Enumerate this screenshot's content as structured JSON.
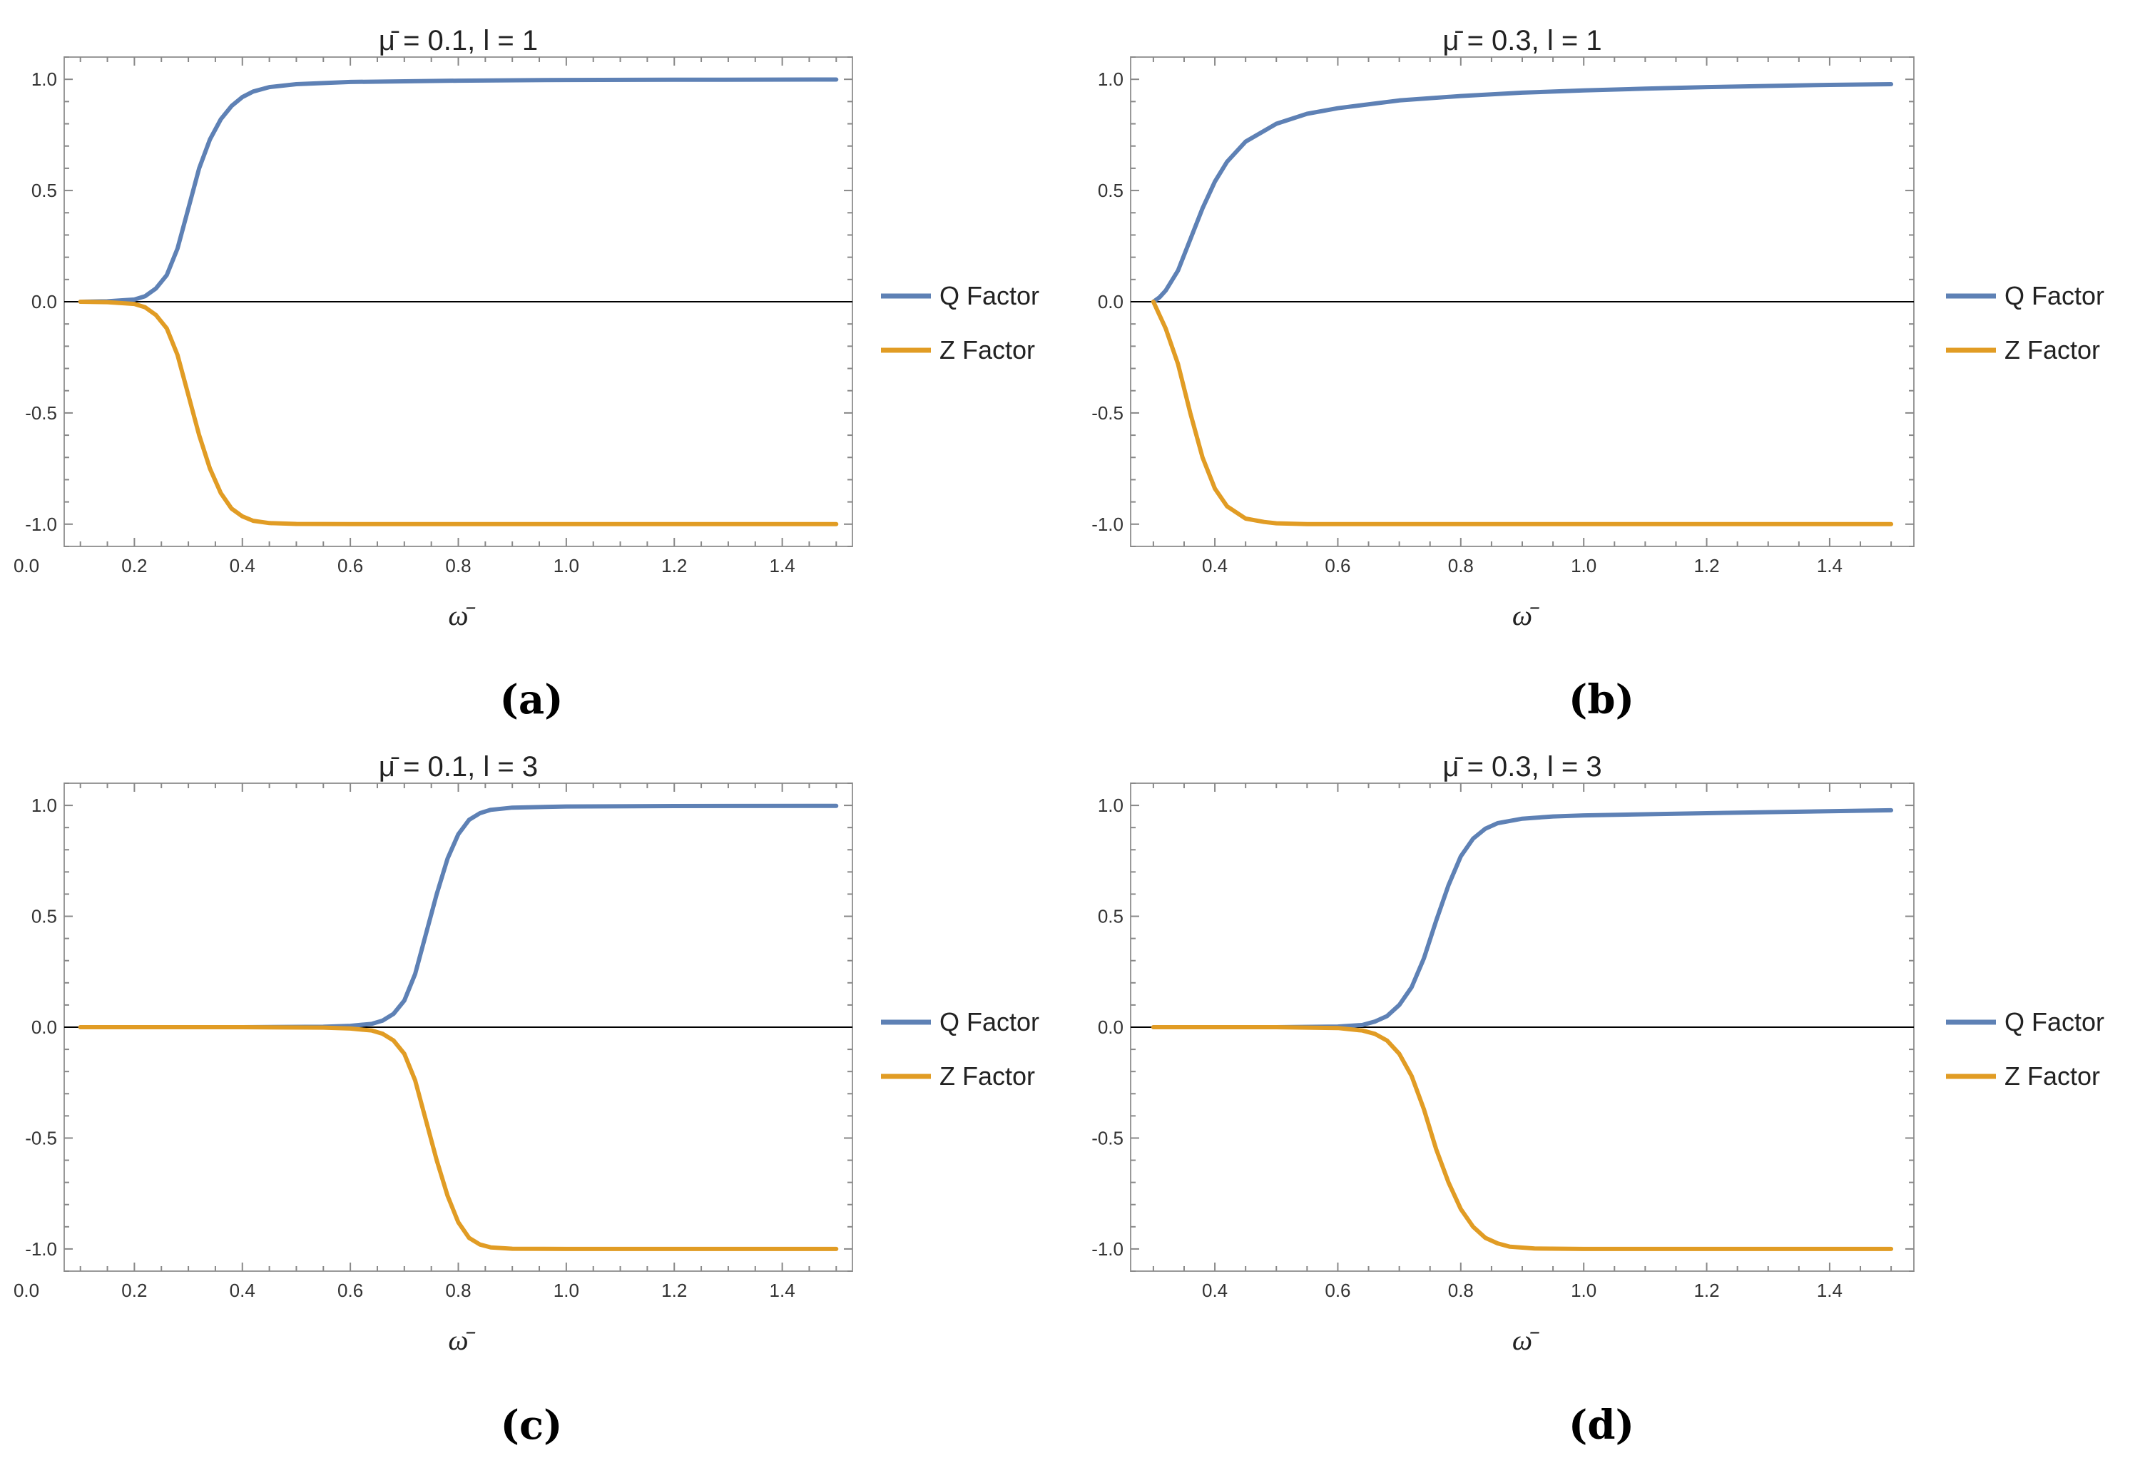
{
  "colors": {
    "q_factor": "#5e81b5",
    "z_factor": "#e19c24",
    "frame": "#999999",
    "zero_line": "#000000"
  },
  "chart_data": [
    {
      "type": "line",
      "caption": "(a)",
      "title": "μ̄ = 0.1,  l = 1",
      "xlabel": "ω̄",
      "ylabel": "",
      "xlim": [
        0.07,
        1.53
      ],
      "ylim": [
        -1.1,
        1.1
      ],
      "x_ticks": [
        "0.0",
        "0.2",
        "0.4",
        "0.6",
        "0.8",
        "1.0",
        "1.2",
        "1.4"
      ],
      "y_ticks": [
        "1.0",
        "0.5",
        "0.0",
        "-0.5",
        "-1.0"
      ],
      "legend": [
        "Q Factor",
        "Z Factor"
      ],
      "legend_position": "right",
      "series": [
        {
          "name": "Q Factor",
          "x": [
            0.1,
            0.15,
            0.2,
            0.22,
            0.24,
            0.26,
            0.28,
            0.3,
            0.32,
            0.34,
            0.36,
            0.38,
            0.4,
            0.42,
            0.45,
            0.5,
            0.6,
            0.8,
            1.0,
            1.2,
            1.5
          ],
          "values": [
            0.0,
            0.002,
            0.01,
            0.025,
            0.06,
            0.12,
            0.24,
            0.42,
            0.6,
            0.73,
            0.82,
            0.88,
            0.92,
            0.945,
            0.965,
            0.978,
            0.988,
            0.994,
            0.997,
            0.998,
            0.999
          ]
        },
        {
          "name": "Z Factor",
          "x": [
            0.1,
            0.15,
            0.2,
            0.22,
            0.24,
            0.26,
            0.28,
            0.3,
            0.32,
            0.34,
            0.36,
            0.38,
            0.4,
            0.42,
            0.45,
            0.5,
            0.6,
            0.8,
            1.0,
            1.2,
            1.5
          ],
          "values": [
            0.0,
            -0.002,
            -0.01,
            -0.025,
            -0.06,
            -0.12,
            -0.24,
            -0.42,
            -0.6,
            -0.75,
            -0.86,
            -0.93,
            -0.965,
            -0.985,
            -0.995,
            -0.999,
            -1.0,
            -1.0,
            -1.0,
            -1.0,
            -1.0
          ]
        }
      ]
    },
    {
      "type": "line",
      "caption": "(b)",
      "title": "μ̄ = 0.3,  l = 1",
      "xlabel": "ω̄",
      "ylabel": "",
      "xlim": [
        0.263,
        1.537
      ],
      "ylim": [
        -1.1,
        1.1
      ],
      "x_ticks": [
        "0.4",
        "0.6",
        "0.8",
        "1.0",
        "1.2",
        "1.4"
      ],
      "y_ticks": [
        "1.0",
        "0.5",
        "0.0",
        "-0.5",
        "-1.0"
      ],
      "legend": [
        "Q Factor",
        "Z Factor"
      ],
      "legend_position": "right",
      "series": [
        {
          "name": "Q Factor",
          "x": [
            0.3,
            0.31,
            0.32,
            0.34,
            0.36,
            0.38,
            0.4,
            0.42,
            0.45,
            0.5,
            0.55,
            0.6,
            0.7,
            0.8,
            0.9,
            1.0,
            1.1,
            1.2,
            1.3,
            1.4,
            1.5
          ],
          "values": [
            0.0,
            0.02,
            0.05,
            0.14,
            0.28,
            0.42,
            0.54,
            0.63,
            0.72,
            0.8,
            0.845,
            0.87,
            0.905,
            0.925,
            0.94,
            0.95,
            0.958,
            0.965,
            0.97,
            0.975,
            0.978
          ]
        },
        {
          "name": "Z Factor",
          "x": [
            0.3,
            0.31,
            0.32,
            0.34,
            0.36,
            0.38,
            0.4,
            0.42,
            0.45,
            0.48,
            0.5,
            0.55,
            0.6,
            0.8,
            1.0,
            1.2,
            1.5
          ],
          "values": [
            0.0,
            -0.06,
            -0.12,
            -0.28,
            -0.5,
            -0.7,
            -0.84,
            -0.92,
            -0.975,
            -0.99,
            -0.996,
            -1.0,
            -1.0,
            -1.0,
            -1.0,
            -1.0,
            -1.0
          ]
        }
      ]
    },
    {
      "type": "line",
      "caption": "(c)",
      "title": "μ̄ = 0.1,  l = 3",
      "xlabel": "ω̄",
      "ylabel": "",
      "xlim": [
        0.07,
        1.53
      ],
      "ylim": [
        -1.1,
        1.1
      ],
      "x_ticks": [
        "0.0",
        "0.2",
        "0.4",
        "0.6",
        "0.8",
        "1.0",
        "1.2",
        "1.4"
      ],
      "y_ticks": [
        "1.0",
        "0.5",
        "0.0",
        "-0.5",
        "-1.0"
      ],
      "legend": [
        "Q Factor",
        "Z Factor"
      ],
      "legend_position": "right",
      "series": [
        {
          "name": "Q Factor",
          "x": [
            0.1,
            0.4,
            0.55,
            0.6,
            0.64,
            0.66,
            0.68,
            0.7,
            0.72,
            0.74,
            0.76,
            0.78,
            0.8,
            0.82,
            0.84,
            0.86,
            0.9,
            1.0,
            1.2,
            1.5
          ],
          "values": [
            0.0,
            0.0,
            0.002,
            0.006,
            0.015,
            0.03,
            0.06,
            0.12,
            0.24,
            0.42,
            0.6,
            0.76,
            0.87,
            0.935,
            0.965,
            0.98,
            0.99,
            0.995,
            0.997,
            0.998
          ]
        },
        {
          "name": "Z Factor",
          "x": [
            0.1,
            0.4,
            0.55,
            0.6,
            0.64,
            0.66,
            0.68,
            0.7,
            0.72,
            0.74,
            0.76,
            0.78,
            0.8,
            0.82,
            0.84,
            0.86,
            0.9,
            1.0,
            1.2,
            1.5
          ],
          "values": [
            0.0,
            0.0,
            -0.002,
            -0.006,
            -0.015,
            -0.03,
            -0.06,
            -0.12,
            -0.24,
            -0.42,
            -0.6,
            -0.76,
            -0.88,
            -0.95,
            -0.98,
            -0.993,
            -0.999,
            -1.0,
            -1.0,
            -1.0
          ]
        }
      ]
    },
    {
      "type": "line",
      "caption": "(d)",
      "title": "μ̄ = 0.3,  l = 3",
      "xlabel": "ω̄",
      "ylabel": "",
      "xlim": [
        0.263,
        1.537
      ],
      "ylim": [
        -1.1,
        1.1
      ],
      "x_ticks": [
        "0.4",
        "0.6",
        "0.8",
        "1.0",
        "1.2",
        "1.4"
      ],
      "y_ticks": [
        "1.0",
        "0.5",
        "0.0",
        "-0.5",
        "-1.0"
      ],
      "legend": [
        "Q Factor",
        "Z Factor"
      ],
      "legend_position": "right",
      "series": [
        {
          "name": "Q Factor",
          "x": [
            0.3,
            0.5,
            0.6,
            0.64,
            0.66,
            0.68,
            0.7,
            0.72,
            0.74,
            0.76,
            0.78,
            0.8,
            0.82,
            0.84,
            0.86,
            0.9,
            0.95,
            1.0,
            1.2,
            1.5
          ],
          "values": [
            0.0,
            0.0,
            0.003,
            0.01,
            0.025,
            0.05,
            0.1,
            0.18,
            0.31,
            0.48,
            0.64,
            0.77,
            0.85,
            0.895,
            0.92,
            0.94,
            0.95,
            0.955,
            0.965,
            0.978
          ]
        },
        {
          "name": "Z Factor",
          "x": [
            0.3,
            0.5,
            0.6,
            0.64,
            0.66,
            0.68,
            0.7,
            0.72,
            0.74,
            0.76,
            0.78,
            0.8,
            0.82,
            0.84,
            0.86,
            0.88,
            0.92,
            1.0,
            1.2,
            1.5
          ],
          "values": [
            0.0,
            0.0,
            -0.004,
            -0.015,
            -0.03,
            -0.06,
            -0.12,
            -0.22,
            -0.37,
            -0.55,
            -0.7,
            -0.82,
            -0.9,
            -0.95,
            -0.975,
            -0.99,
            -0.998,
            -1.0,
            -1.0,
            -1.0
          ]
        }
      ]
    }
  ]
}
